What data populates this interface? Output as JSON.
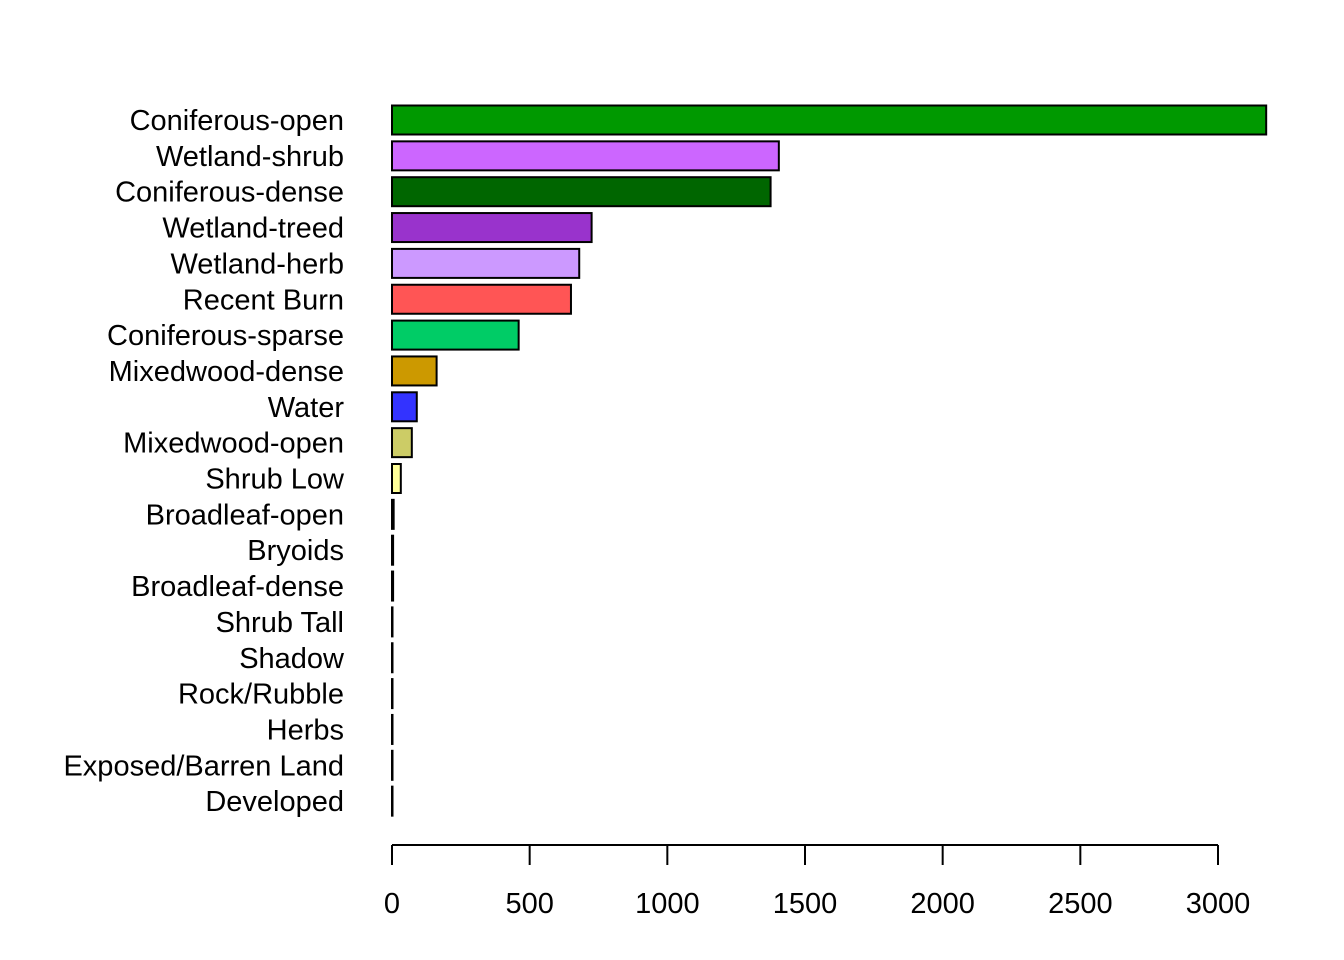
{
  "chart_data": {
    "type": "bar",
    "orientation": "horizontal",
    "title": "",
    "xlabel": "",
    "ylabel": "",
    "xlim": [
      0,
      3200
    ],
    "x_ticks": [
      0,
      500,
      1000,
      1500,
      2000,
      2500,
      3000
    ],
    "grid": false,
    "legend": "none",
    "categories": [
      "Coniferous-open",
      "Wetland-shrub",
      "Coniferous-dense",
      "Wetland-treed",
      "Wetland-herb",
      "Recent Burn",
      "Coniferous-sparse",
      "Mixedwood-dense",
      "Water",
      "Mixedwood-open",
      "Shrub Low",
      "Broadleaf-open",
      "Bryoids",
      "Broadleaf-dense",
      "Shrub Tall",
      "Shadow",
      "Rock/Rubble",
      "Herbs",
      "Exposed/Barren Land",
      "Developed"
    ],
    "values": [
      3175,
      1405,
      1375,
      725,
      680,
      650,
      460,
      162,
      90,
      72,
      32,
      6,
      4,
      4,
      1,
      1,
      1,
      1,
      1,
      1
    ],
    "colors": [
      "#009900",
      "#CC66FF",
      "#006600",
      "#9933CC",
      "#CC99FF",
      "#FF5555",
      "#00CC66",
      "#CC9900",
      "#3333FF",
      "#CCCC66",
      "#FFFF99",
      "#FFFFFF",
      "#FFFFFF",
      "#FFFFFF",
      "#FFFFFF",
      "#FFFFFF",
      "#FFFFFF",
      "#FFFFFF",
      "#FFFFFF",
      "#FFFFFF"
    ]
  }
}
